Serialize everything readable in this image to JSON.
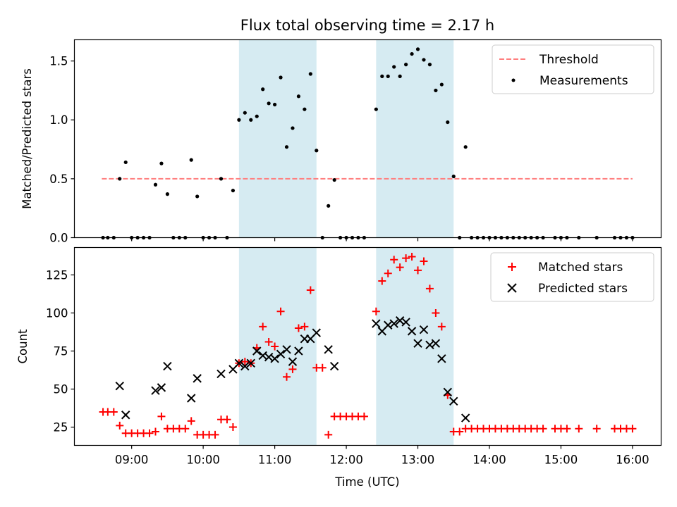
{
  "chart_data": [
    {
      "type": "scatter",
      "title": "Flux total observing time = 2.17 h",
      "xlabel": "",
      "ylabel": "Matched/Predicted stars",
      "xlim": [
        "08:12",
        "16:24"
      ],
      "ylim": [
        0,
        1.68
      ],
      "yticks": [
        0.0,
        0.5,
        1.0,
        1.5
      ],
      "ytick_labels": [
        "0.0",
        "0.5",
        "1.0",
        "1.5"
      ],
      "xticks": [
        "09:00",
        "10:00",
        "11:00",
        "12:00",
        "13:00",
        "14:00",
        "15:00",
        "16:00"
      ],
      "shaded_intervals": [
        [
          "10:30",
          "11:35"
        ],
        [
          "12:25",
          "13:30"
        ]
      ],
      "shade_color": "#add8e6",
      "legend_position": "upper right",
      "threshold": {
        "name": "Threshold",
        "y": 0.5,
        "x_range": [
          "08:35",
          "16:00"
        ],
        "color": "#ff7f7f",
        "style": "dashed"
      },
      "series": [
        {
          "name": "Measurements",
          "color": "#000000",
          "marker": "dot",
          "points": [
            [
              "08:36",
              0
            ],
            [
              "08:40",
              0
            ],
            [
              "08:45",
              0
            ],
            [
              "08:50",
              0.5
            ],
            [
              "08:55",
              0.64
            ],
            [
              "09:00",
              0
            ],
            [
              "09:05",
              0
            ],
            [
              "09:10",
              0
            ],
            [
              "09:15",
              0
            ],
            [
              "09:20",
              0.45
            ],
            [
              "09:25",
              0.63
            ],
            [
              "09:30",
              0.37
            ],
            [
              "09:35",
              0
            ],
            [
              "09:40",
              0
            ],
            [
              "09:45",
              0
            ],
            [
              "09:50",
              0.66
            ],
            [
              "09:55",
              0.35
            ],
            [
              "10:00",
              0
            ],
            [
              "10:05",
              0
            ],
            [
              "10:10",
              0
            ],
            [
              "10:15",
              0.5
            ],
            [
              "10:20",
              0
            ],
            [
              "10:25",
              0.4
            ],
            [
              "10:30",
              1.0
            ],
            [
              "10:35",
              1.06
            ],
            [
              "10:40",
              1.0
            ],
            [
              "10:45",
              1.03
            ],
            [
              "10:50",
              1.26
            ],
            [
              "10:55",
              1.14
            ],
            [
              "11:00",
              1.13
            ],
            [
              "11:05",
              1.36
            ],
            [
              "11:10",
              0.77
            ],
            [
              "11:15",
              0.93
            ],
            [
              "11:20",
              1.2
            ],
            [
              "11:25",
              1.09
            ],
            [
              "11:30",
              1.39
            ],
            [
              "11:35",
              0.74
            ],
            [
              "11:40",
              0
            ],
            [
              "11:45",
              0.27
            ],
            [
              "11:50",
              0.49
            ],
            [
              "11:55",
              0
            ],
            [
              "12:00",
              0
            ],
            [
              "12:05",
              0
            ],
            [
              "12:10",
              0
            ],
            [
              "12:15",
              0
            ],
            [
              "12:25",
              1.09
            ],
            [
              "12:30",
              1.37
            ],
            [
              "12:35",
              1.37
            ],
            [
              "12:40",
              1.45
            ],
            [
              "12:45",
              1.37
            ],
            [
              "12:50",
              1.47
            ],
            [
              "12:55",
              1.56
            ],
            [
              "13:00",
              1.6
            ],
            [
              "13:05",
              1.51
            ],
            [
              "13:10",
              1.47
            ],
            [
              "13:15",
              1.25
            ],
            [
              "13:20",
              1.3
            ],
            [
              "13:25",
              0.98
            ],
            [
              "13:30",
              0.52
            ],
            [
              "13:35",
              0
            ],
            [
              "13:40",
              0.77
            ],
            [
              "13:45",
              0
            ],
            [
              "13:50",
              0
            ],
            [
              "13:55",
              0
            ],
            [
              "14:00",
              0
            ],
            [
              "14:05",
              0
            ],
            [
              "14:10",
              0
            ],
            [
              "14:15",
              0
            ],
            [
              "14:20",
              0
            ],
            [
              "14:25",
              0
            ],
            [
              "14:30",
              0
            ],
            [
              "14:35",
              0
            ],
            [
              "14:40",
              0
            ],
            [
              "14:45",
              0
            ],
            [
              "14:55",
              0
            ],
            [
              "15:00",
              0
            ],
            [
              "15:05",
              0
            ],
            [
              "15:15",
              0
            ],
            [
              "15:30",
              0
            ],
            [
              "15:45",
              0
            ],
            [
              "15:50",
              0
            ],
            [
              "15:55",
              0
            ],
            [
              "16:00",
              0
            ]
          ]
        }
      ]
    },
    {
      "type": "scatter",
      "title": "",
      "xlabel": "Time (UTC)",
      "ylabel": "Count",
      "xlim": [
        "08:12",
        "16:24"
      ],
      "ylim": [
        13,
        143
      ],
      "yticks": [
        25,
        50,
        75,
        100,
        125
      ],
      "ytick_labels": [
        "25",
        "50",
        "75",
        "100",
        "125"
      ],
      "xticks": [
        "09:00",
        "10:00",
        "11:00",
        "12:00",
        "13:00",
        "14:00",
        "15:00",
        "16:00"
      ],
      "shaded_intervals": [
        [
          "10:30",
          "11:35"
        ],
        [
          "12:25",
          "13:30"
        ]
      ],
      "shade_color": "#add8e6",
      "legend_position": "upper right",
      "series": [
        {
          "name": "Matched stars",
          "color": "#ff0000",
          "marker": "plus",
          "points": [
            [
              "08:36",
              35
            ],
            [
              "08:40",
              35
            ],
            [
              "08:45",
              35
            ],
            [
              "08:50",
              26
            ],
            [
              "08:55",
              21
            ],
            [
              "09:00",
              21
            ],
            [
              "09:05",
              21
            ],
            [
              "09:10",
              21
            ],
            [
              "09:15",
              21
            ],
            [
              "09:20",
              22
            ],
            [
              "09:25",
              32
            ],
            [
              "09:30",
              24
            ],
            [
              "09:35",
              24
            ],
            [
              "09:40",
              24
            ],
            [
              "09:45",
              24
            ],
            [
              "09:50",
              29
            ],
            [
              "09:55",
              20
            ],
            [
              "10:00",
              20
            ],
            [
              "10:05",
              20
            ],
            [
              "10:10",
              20
            ],
            [
              "10:15",
              30
            ],
            [
              "10:20",
              30
            ],
            [
              "10:25",
              25
            ],
            [
              "10:30",
              67
            ],
            [
              "10:35",
              68
            ],
            [
              "10:40",
              67
            ],
            [
              "10:45",
              77
            ],
            [
              "10:50",
              91
            ],
            [
              "10:55",
              81
            ],
            [
              "11:00",
              78
            ],
            [
              "11:05",
              101
            ],
            [
              "11:10",
              58
            ],
            [
              "11:15",
              63
            ],
            [
              "11:20",
              90
            ],
            [
              "11:25",
              91
            ],
            [
              "11:30",
              115
            ],
            [
              "11:35",
              64
            ],
            [
              "11:40",
              64
            ],
            [
              "11:45",
              20
            ],
            [
              "11:50",
              32
            ],
            [
              "11:55",
              32
            ],
            [
              "12:00",
              32
            ],
            [
              "12:05",
              32
            ],
            [
              "12:10",
              32
            ],
            [
              "12:15",
              32
            ],
            [
              "12:25",
              101
            ],
            [
              "12:30",
              121
            ],
            [
              "12:35",
              126
            ],
            [
              "12:40",
              135
            ],
            [
              "12:45",
              130
            ],
            [
              "12:50",
              136
            ],
            [
              "12:55",
              137
            ],
            [
              "13:00",
              128
            ],
            [
              "13:05",
              134
            ],
            [
              "13:10",
              116
            ],
            [
              "13:15",
              100
            ],
            [
              "13:20",
              91
            ],
            [
              "13:25",
              46
            ],
            [
              "13:30",
              22
            ],
            [
              "13:35",
              22
            ],
            [
              "13:40",
              24
            ],
            [
              "13:45",
              24
            ],
            [
              "13:50",
              24
            ],
            [
              "13:55",
              24
            ],
            [
              "14:00",
              24
            ],
            [
              "14:05",
              24
            ],
            [
              "14:10",
              24
            ],
            [
              "14:15",
              24
            ],
            [
              "14:20",
              24
            ],
            [
              "14:25",
              24
            ],
            [
              "14:30",
              24
            ],
            [
              "14:35",
              24
            ],
            [
              "14:40",
              24
            ],
            [
              "14:45",
              24
            ],
            [
              "14:55",
              24
            ],
            [
              "15:00",
              24
            ],
            [
              "15:05",
              24
            ],
            [
              "15:15",
              24
            ],
            [
              "15:30",
              24
            ],
            [
              "15:45",
              24
            ],
            [
              "15:50",
              24
            ],
            [
              "15:55",
              24
            ],
            [
              "16:00",
              24
            ]
          ]
        },
        {
          "name": "Predicted stars",
          "color": "#000000",
          "marker": "x",
          "points": [
            [
              "08:50",
              52
            ],
            [
              "08:55",
              33
            ],
            [
              "09:20",
              49
            ],
            [
              "09:25",
              51
            ],
            [
              "09:30",
              65
            ],
            [
              "09:50",
              44
            ],
            [
              "09:55",
              57
            ],
            [
              "10:15",
              60
            ],
            [
              "10:25",
              63
            ],
            [
              "10:30",
              67
            ],
            [
              "10:35",
              65
            ],
            [
              "10:40",
              67
            ],
            [
              "10:45",
              75
            ],
            [
              "10:50",
              72
            ],
            [
              "10:55",
              71
            ],
            [
              "11:00",
              70
            ],
            [
              "11:05",
              73
            ],
            [
              "11:10",
              76
            ],
            [
              "11:15",
              68
            ],
            [
              "11:20",
              75
            ],
            [
              "11:25",
              83
            ],
            [
              "11:30",
              83
            ],
            [
              "11:35",
              87
            ],
            [
              "11:45",
              76
            ],
            [
              "11:50",
              65
            ],
            [
              "12:25",
              93
            ],
            [
              "12:30",
              88
            ],
            [
              "12:35",
              92
            ],
            [
              "12:40",
              93
            ],
            [
              "12:45",
              95
            ],
            [
              "12:50",
              94
            ],
            [
              "12:55",
              88
            ],
            [
              "13:00",
              80
            ],
            [
              "13:05",
              89
            ],
            [
              "13:10",
              79
            ],
            [
              "13:15",
              80
            ],
            [
              "13:20",
              70
            ],
            [
              "13:25",
              48
            ],
            [
              "13:30",
              42
            ],
            [
              "13:40",
              31
            ]
          ]
        }
      ]
    }
  ]
}
